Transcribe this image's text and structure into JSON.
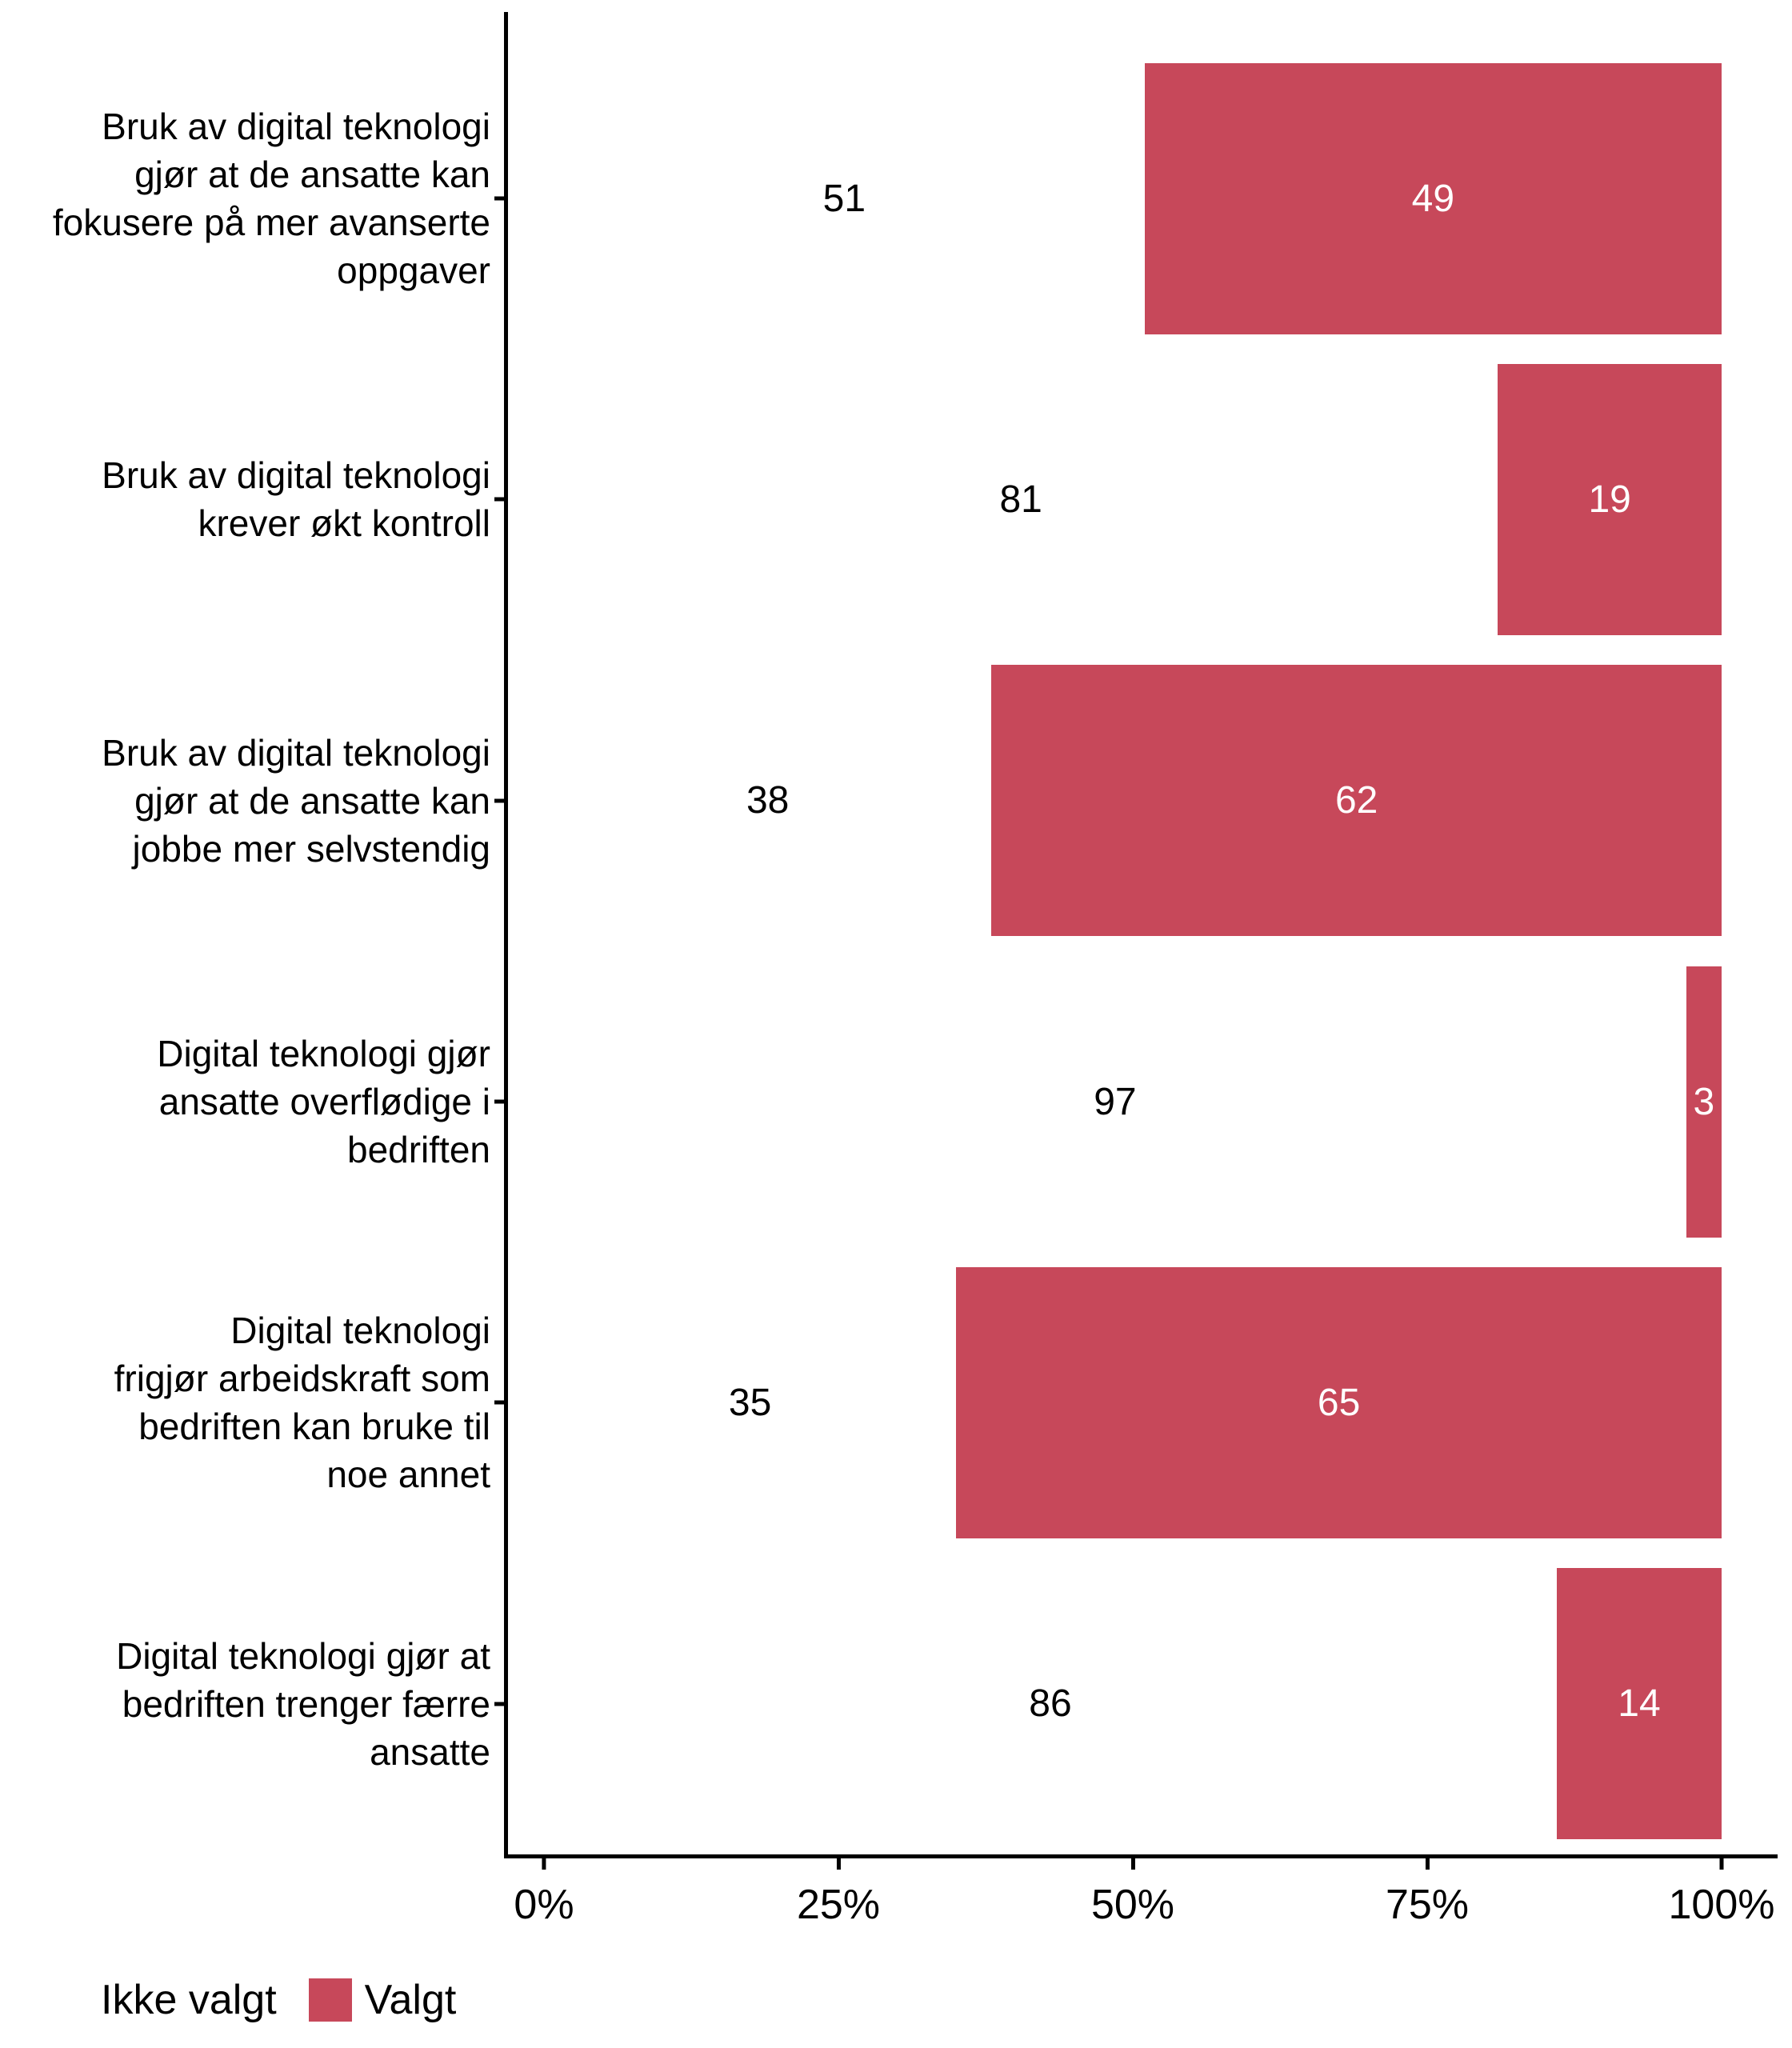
{
  "chart_data": {
    "type": "bar",
    "orientation": "horizontal",
    "stacked": true,
    "title": "",
    "xlabel": "",
    "ylabel": "",
    "xlim": [
      0,
      100
    ],
    "grid": false,
    "legend_position": "bottom-left",
    "categories": [
      "Bruk av digital teknologi\ngjør at de ansatte kan\nfokusere på mer avanserte\noppgaver",
      "Bruk av digital teknologi\nkrever økt kontroll",
      "Bruk av digital teknologi\ngjør at de ansatte kan\njobbe mer selvstendig",
      "Digital teknologi gjør\nansatte overflødige i\nbedriften",
      "Digital teknologi\nfrigjør arbeidskraft som\nbedriften kan bruke til\nnoe annet",
      "Digital teknologi gjør at\nbedriften trenger færre\nansatte"
    ],
    "series": [
      {
        "name": "Ikke valgt",
        "color": "#FFFFFF",
        "label_color": "#000000",
        "values": [
          51,
          81,
          38,
          97,
          35,
          86
        ]
      },
      {
        "name": "Valgt",
        "color": "#C7485A",
        "label_color": "#FFFFFF",
        "values": [
          49,
          19,
          62,
          3,
          65,
          14
        ]
      }
    ],
    "x_ticks": [
      {
        "label": "0%",
        "value": 0
      },
      {
        "label": "25%",
        "value": 25
      },
      {
        "label": "50%",
        "value": 50
      },
      {
        "label": "75%",
        "value": 75
      },
      {
        "label": "100%",
        "value": 100
      }
    ]
  },
  "legend": {
    "items": [
      {
        "label": "Ikke valgt",
        "swatch_color": "#FFFFFF"
      },
      {
        "label": "Valgt",
        "swatch_color": "#C7485A"
      }
    ]
  },
  "colors": {
    "accent": "#C7485A",
    "axis": "#000000",
    "background": "#FFFFFF"
  }
}
